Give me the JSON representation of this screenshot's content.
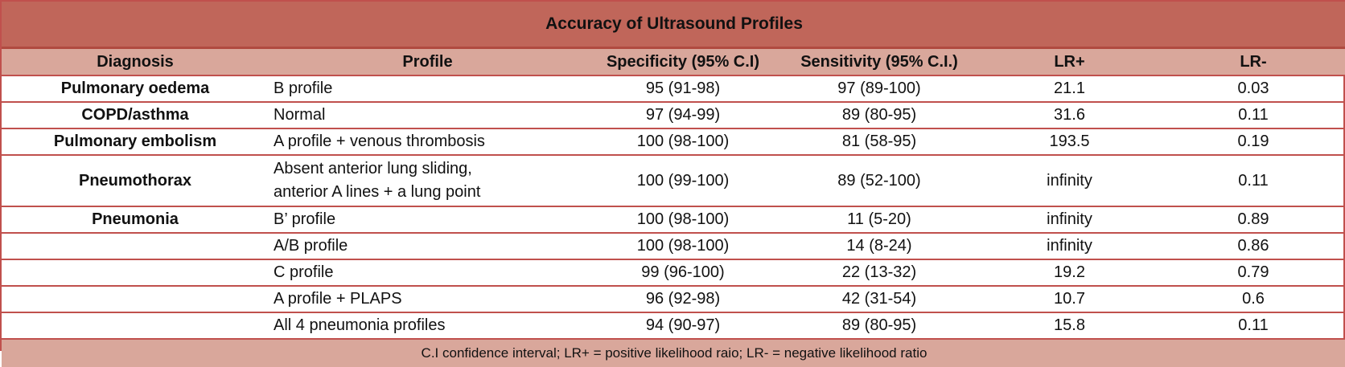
{
  "title": "Accuracy of Ultrasound Profiles",
  "headers": [
    "Diagnosis",
    "Profile",
    "Specificity (95% C.I)",
    "Sensitivity (95% C.I.)",
    "LR+",
    "LR-"
  ],
  "rows": [
    {
      "diagnosis": "Pulmonary oedema",
      "profile": "B profile",
      "specificity": "95 (91-98)",
      "sensitivity": "97 (89-100)",
      "lr_plus": "21.1",
      "lr_minus": "0.03"
    },
    {
      "diagnosis": "COPD/asthma",
      "profile": "Normal",
      "specificity": "97 (94-99)",
      "sensitivity": "89 (80-95)",
      "lr_plus": "31.6",
      "lr_minus": "0.11"
    },
    {
      "diagnosis": "Pulmonary embolism",
      "profile": "A profile + venous thrombosis",
      "specificity": "100 (98-100)",
      "sensitivity": "81 (58-95)",
      "lr_plus": "193.5",
      "lr_minus": "0.19"
    },
    {
      "diagnosis": "Pneumothorax",
      "profile": "Absent anterior lung sliding,",
      "profile_line2": "anterior A lines + a lung point",
      "specificity": "100 (99-100)",
      "sensitivity": "89 (52-100)",
      "lr_plus": "infinity",
      "lr_minus": "0.11"
    },
    {
      "diagnosis": "Pneumonia",
      "profile": "B’ profile",
      "specificity": "100 (98-100)",
      "sensitivity": "11 (5-20)",
      "lr_plus": "infinity",
      "lr_minus": "0.89"
    },
    {
      "diagnosis": "",
      "profile": "A/B profile",
      "specificity": "100 (98-100)",
      "sensitivity": "14 (8-24)",
      "lr_plus": "infinity",
      "lr_minus": "0.86"
    },
    {
      "diagnosis": "",
      "profile": "C profile",
      "specificity": "99 (96-100)",
      "sensitivity": "22 (13-32)",
      "lr_plus": "19.2",
      "lr_minus": "0.79"
    },
    {
      "diagnosis": "",
      "profile": "A profile + PLAPS",
      "specificity": "96 (92-98)",
      "sensitivity": "42 (31-54)",
      "lr_plus": "10.7",
      "lr_minus": "0.6"
    },
    {
      "diagnosis": "",
      "profile": "All 4 pneumonia profiles",
      "specificity": "94 (90-97)",
      "sensitivity": "89 (80-95)",
      "lr_plus": "15.8",
      "lr_minus": "0.11"
    }
  ],
  "footnote": "C.I confidence interval;  LR+ = positive likelihood raio; LR- = negative likelihood ratio",
  "colors": {
    "title_bg": "#c0665a",
    "header_bg": "#d9a79b",
    "border": "#c0504d"
  }
}
